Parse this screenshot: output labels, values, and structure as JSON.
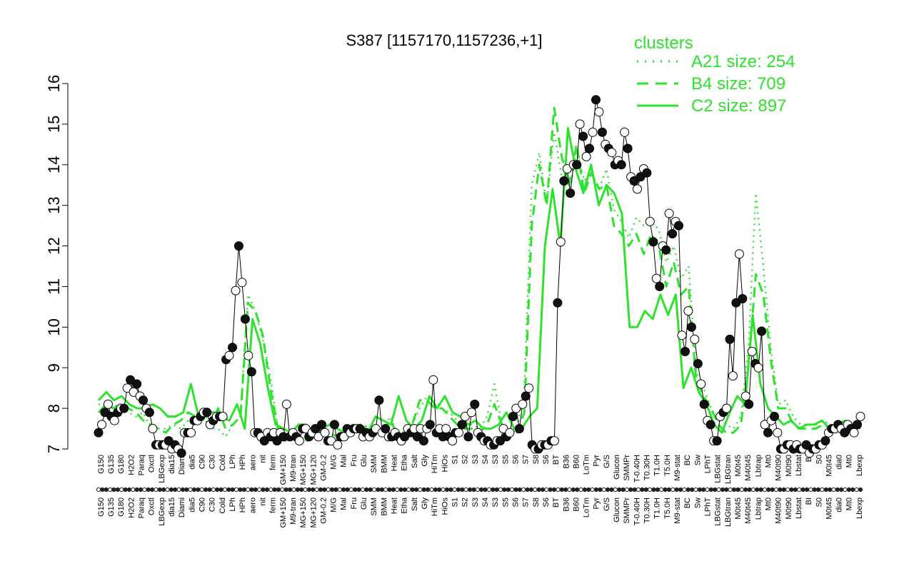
{
  "chart_data": {
    "type": "line",
    "title": "S387 [1157170,1157236,+1]",
    "xlabel": "",
    "ylabel": "",
    "ylim": [
      7,
      16
    ],
    "yticks": [
      7,
      8,
      9,
      10,
      11,
      12,
      13,
      14,
      15,
      16
    ],
    "legend": {
      "title": "clusters",
      "placement": "top-right",
      "entries": [
        {
          "label": "A21 size: 254",
          "style": "dotted"
        },
        {
          "label": "B4 size: 709",
          "style": "dashed"
        },
        {
          "label": "C2 size: 897",
          "style": "solid"
        }
      ]
    },
    "x_tick_labels": [
      "G150",
      "G135",
      "G180",
      "H2O2",
      "Paraq",
      "Oxctl",
      "LBGexp",
      "dia15",
      "Diami",
      "dia5",
      "C90",
      "C30",
      "Cold",
      "LPh",
      "HPh",
      "aero",
      "nit",
      "ferm",
      "GM+150",
      "M9-tran",
      "MG+150",
      "MG+120",
      "GM-0.2",
      "M/G",
      "Mal",
      "Fru",
      "Glu",
      "SMM",
      "BMM",
      "Heat",
      "Etha",
      "Salt",
      "Gly",
      "HiTm",
      "HiOs",
      "S1",
      "S2",
      "S3",
      "S4",
      "S3",
      "S5",
      "S6",
      "S7",
      "S8",
      "S6",
      "BT",
      "B36",
      "B60",
      "LoTm",
      "Pyr",
      "G/S",
      "Glucon",
      "SMMPr",
      "T-0.40H",
      "T0.30H",
      "T1.0H",
      "T5.0H",
      "M9-stat",
      "BC",
      "Sw",
      "LPhT",
      "LBGstat",
      "LBGtran",
      "M0t45",
      "M40t45",
      "Lbtrap",
      "Mt0",
      "M40t90",
      "M0t90",
      "Lbstat",
      "BI",
      "S0",
      "M0t45",
      "dia0",
      "Mt0",
      "Lbexp"
    ],
    "series": [
      {
        "name": "",
        "style": "points",
        "values": [
          7.4,
          7.6,
          7.9,
          8.1,
          7.8,
          7.7,
          7.9,
          8.0,
          8.0,
          8.5,
          8.7,
          8.4,
          8.6,
          8.3,
          8.2,
          8.0,
          7.9,
          7.5,
          7.1,
          7.1,
          7.1,
          7.1,
          7.2,
          7.0,
          7.1,
          7.0,
          6.9,
          7.4,
          7.4,
          7.4,
          7.7,
          7.7,
          7.8,
          7.9,
          7.9,
          7.6,
          7.7,
          7.8,
          7.8,
          7.8,
          9.2,
          9.3,
          9.5,
          10.9,
          12.0,
          11.1,
          10.2,
          9.3,
          8.9,
          7.4,
          7.4,
          7.3,
          7.2,
          7.4,
          7.3,
          7.4,
          7.2,
          7.4,
          7.3,
          8.1,
          7.3,
          7.4,
          7.3,
          7.2,
          7.5,
          7.5,
          7.3,
          7.4,
          7.5,
          7.3,
          7.6,
          7.4,
          7.2,
          7.2,
          7.6,
          7.1,
          7.3,
          7.3,
          7.5,
          7.4,
          7.5,
          7.5,
          7.5,
          7.3,
          7.4,
          7.3,
          7.4,
          7.5,
          8.2,
          7.4,
          7.5,
          7.3,
          7.3,
          7.4,
          7.3,
          7.2,
          7.3,
          7.5,
          7.4,
          7.5,
          7.3,
          7.5,
          7.2,
          7.5,
          7.6,
          8.7,
          7.4,
          7.5,
          7.3,
          7.5,
          7.3,
          7.2,
          7.4,
          7.4,
          7.6,
          7.8,
          7.3,
          7.9,
          8.1,
          7.4,
          7.3,
          7.2,
          7.2,
          7.1,
          7.1,
          7.2,
          7.2,
          7.5,
          7.3,
          7.4,
          7.8,
          8.0,
          7.5,
          8.1,
          8.3,
          8.5,
          7.1,
          7.0,
          7.0,
          7.1,
          7.1,
          7.1,
          7.2,
          7.2,
          10.6,
          12.1,
          13.6,
          13.9,
          13.3,
          14.0,
          14.0,
          15.0,
          14.7,
          14.2,
          14.4,
          14.8,
          15.6,
          15.3,
          14.8,
          14.5,
          14.4,
          14.3,
          14.0,
          14.1,
          14.0,
          14.8,
          14.4,
          13.7,
          13.6,
          13.4,
          13.7,
          13.9,
          13.8,
          12.6,
          12.1,
          11.2,
          11.0,
          12.0,
          11.9,
          12.8,
          12.3,
          12.6,
          12.5,
          9.8,
          9.4,
          10.4,
          10.0,
          9.7,
          9.1,
          8.6,
          8.1,
          7.7,
          7.6,
          7.2,
          7.2,
          7.8,
          7.9,
          8.0,
          9.7,
          8.8,
          10.6,
          11.8,
          10.7,
          8.3,
          8.1,
          9.4,
          9.1,
          9.0,
          9.9,
          7.6,
          7.4,
          7.7,
          7.8,
          7.4,
          7.0,
          7.0,
          7.1,
          7.1,
          7.0,
          7.1,
          7.0,
          7.0,
          7.1,
          6.9,
          7.0,
          7.0,
          7.1,
          7.1,
          7.2,
          7.4,
          7.5,
          7.5,
          7.6,
          7.5,
          7.4,
          7.6,
          7.5,
          7.4,
          7.6,
          7.8
        ]
      },
      {
        "name": "A21 size: 254",
        "style": "dotted",
        "values": [
          8.1,
          8.1,
          8.1,
          8.0,
          7.9,
          7.8,
          7.9,
          7.5,
          7.5,
          7.5,
          7.6,
          7.5,
          7.7,
          7.7,
          7.8,
          7.5,
          7.5,
          7.3,
          7.6,
          7.8,
          10.8,
          10.4,
          9.7,
          8.8,
          7.5,
          7.3,
          7.4,
          7.3,
          7.2,
          7.3,
          7.4,
          7.4,
          7.3,
          7.3,
          7.5,
          7.4,
          7.6,
          7.5,
          7.4,
          7.8,
          7.4,
          7.4,
          7.6,
          8.0,
          8.3,
          8.2,
          8.0,
          7.9,
          7.7,
          7.6,
          7.6,
          7.5,
          7.8,
          8.6,
          7.6,
          7.3,
          7.5,
          8.5,
          13.5,
          14.3,
          13.0,
          14.8,
          13.7,
          13.2,
          14.4,
          13.6,
          13.8,
          13.4,
          13.9,
          12.9,
          12.6,
          12.2,
          12.7,
          12.5,
          12.6,
          12.4,
          11.6,
          12.0,
          11.2,
          11.5,
          8.9,
          8.5,
          8.0,
          7.7,
          7.6,
          7.5,
          7.8,
          9.5,
          13.3,
          11.5,
          9.5,
          8.1,
          8.2,
          7.8,
          7.6,
          7.6,
          7.6,
          7.7,
          7.6,
          7.5,
          7.6,
          7.6,
          7.7
        ]
      },
      {
        "name": "B4 size: 709",
        "style": "dashed",
        "values": [
          7.9,
          8.1,
          8.0,
          8.1,
          8.0,
          7.9,
          7.7,
          7.6,
          7.5,
          7.4,
          7.6,
          7.7,
          7.9,
          7.8,
          7.9,
          7.6,
          8.0,
          7.5,
          7.6,
          7.8,
          10.6,
          10.4,
          9.8,
          8.5,
          7.5,
          7.2,
          7.4,
          7.3,
          7.2,
          7.3,
          7.3,
          7.4,
          7.3,
          7.2,
          7.4,
          7.4,
          7.6,
          7.4,
          7.4,
          7.7,
          7.4,
          7.4,
          7.6,
          8.2,
          8.2,
          8.0,
          8.0,
          7.8,
          7.6,
          7.5,
          7.5,
          7.4,
          7.6,
          8.1,
          7.6,
          7.3,
          7.4,
          7.9,
          12.5,
          14.0,
          13.0,
          15.4,
          14.2,
          13.5,
          14.5,
          13.3,
          13.8,
          13.4,
          13.5,
          12.5,
          12.3,
          12.0,
          12.3,
          11.8,
          12.3,
          12.0,
          11.0,
          11.6,
          10.8,
          11.0,
          8.7,
          8.3,
          8.0,
          7.6,
          7.4,
          7.4,
          7.6,
          9.0,
          11.3,
          10.8,
          9.2,
          8.0,
          8.0,
          7.6,
          7.5,
          7.5,
          7.5,
          7.6,
          7.5,
          7.5,
          7.6,
          7.6,
          7.6
        ]
      },
      {
        "name": "C2 size: 897",
        "style": "solid",
        "values": [
          8.2,
          8.4,
          8.2,
          8.3,
          8.1,
          8.0,
          8.0,
          8.1,
          8.0,
          7.8,
          7.8,
          7.9,
          8.6,
          7.8,
          7.9,
          7.9,
          7.8,
          7.7,
          8.1,
          7.5,
          10.2,
          9.6,
          8.5,
          7.6,
          7.5,
          7.4,
          7.6,
          7.6,
          7.4,
          7.5,
          7.6,
          7.5,
          7.4,
          7.5,
          7.6,
          7.4,
          7.8,
          7.7,
          7.6,
          8.3,
          7.7,
          7.5,
          7.7,
          8.3,
          8.0,
          8.3,
          7.9,
          7.8,
          7.6,
          7.7,
          7.5,
          7.5,
          7.6,
          7.9,
          7.5,
          7.5,
          7.8,
          8.0,
          12.0,
          13.4,
          12.0,
          14.9,
          13.9,
          13.3,
          14.0,
          13.0,
          13.5,
          13.3,
          12.8,
          10.0,
          10.0,
          10.4,
          10.2,
          10.8,
          10.3,
          10.8,
          8.5,
          9.0,
          8.4,
          8.1,
          7.6,
          7.4,
          7.9,
          8.3,
          8.1,
          10.3,
          8.6,
          8.0,
          7.8,
          7.6,
          7.7,
          7.5,
          7.6,
          7.6,
          7.7,
          7.5,
          7.6,
          7.7,
          7.6,
          7.5
        ]
      }
    ]
  }
}
